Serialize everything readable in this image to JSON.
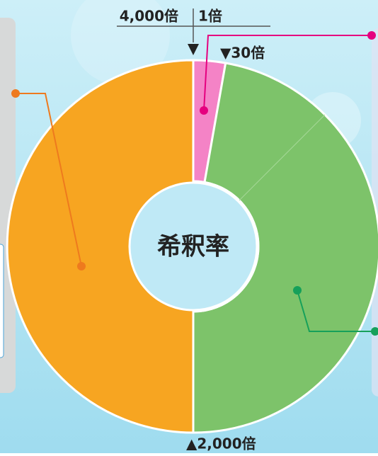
{
  "scale": {
    "max_label": "4,000倍",
    "min_label": "1倍",
    "marker_30": "▼30倍",
    "marker_2000": "▲2,000倍"
  },
  "center": {
    "label": "希釈率"
  }
}
